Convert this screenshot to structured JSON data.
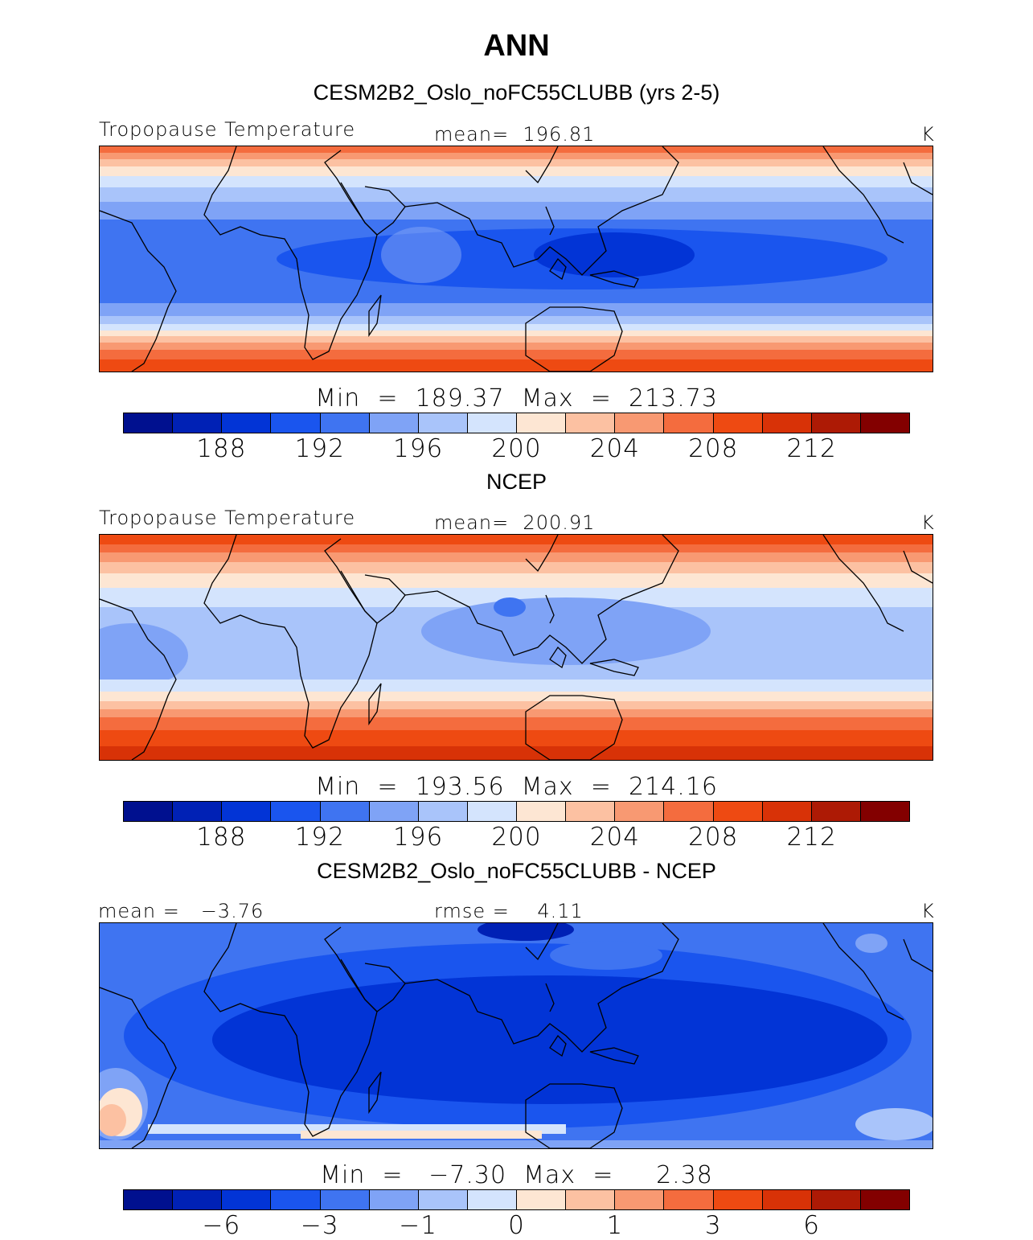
{
  "title": "ANN",
  "palette": [
    "#00108f",
    "#0021b5",
    "#0234d6",
    "#1a55ee",
    "#3f74f1",
    "#7fa3f6",
    "#a9c4fa",
    "#d4e4fd",
    "#fde6d3",
    "#fcc1a2",
    "#f89972",
    "#f46c3e",
    "#ee4a12",
    "#d83207",
    "#ad1a05",
    "#830000"
  ],
  "panels": [
    {
      "title": "CESM2B2_Oslo_noFC55CLUBB (yrs 2-5)",
      "left_label": "Tropopause Temperature",
      "center_label": "mean=  196.81",
      "units": "K",
      "minmax": "Min  =  189.37  Max  =  213.73",
      "ticks": [
        "188",
        "192",
        "196",
        "200",
        "204",
        "208",
        "212"
      ]
    },
    {
      "title": "NCEP",
      "left_label": "Tropopause Temperature",
      "center_label": "mean=  200.91",
      "units": "K",
      "minmax": "Min  =  193.56  Max  =  214.16",
      "ticks": [
        "188",
        "192",
        "196",
        "200",
        "204",
        "208",
        "212"
      ]
    },
    {
      "title": "CESM2B2_Oslo_noFC55CLUBB - NCEP",
      "left_label": "mean =   −3.76",
      "center_label": "rmse =    4.11",
      "units": "K",
      "minmax": "Min  =   −7.30  Max  =     2.38",
      "ticks": [
        "−6",
        "−3",
        "−1",
        "0",
        "1",
        "3",
        "6"
      ]
    }
  ]
}
